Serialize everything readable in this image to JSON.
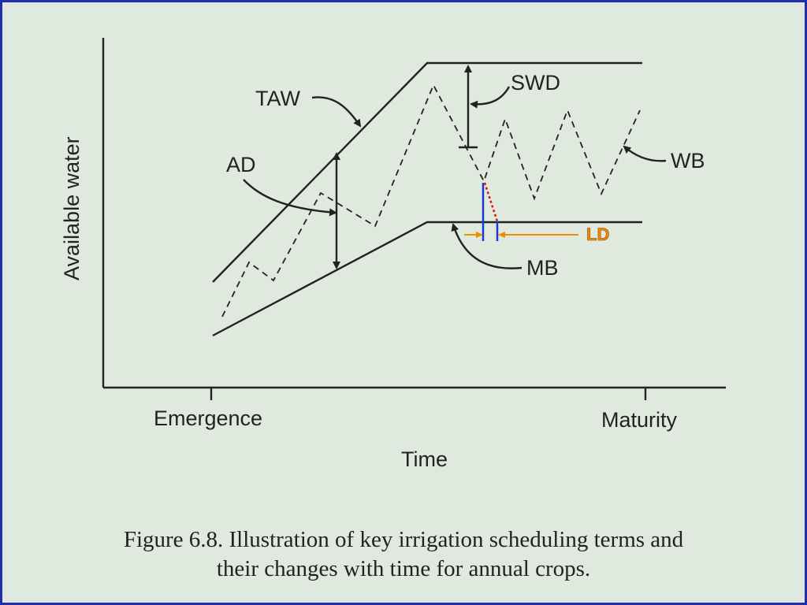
{
  "figure": {
    "y_axis_label": "Available water",
    "x_axis_label": "Time",
    "x_ticks": [
      "Emergence",
      "Maturity"
    ],
    "labels": {
      "taw": "TAW",
      "swd": "SWD",
      "ad": "AD",
      "wb": "WB",
      "mb": "MB",
      "ld": "LD"
    },
    "caption_line1": "Figure 6.8.  Illustration of key irrigation scheduling terms and",
    "caption_line2": "their changes with time for annual crops."
  },
  "colors": {
    "background": "#dfe9de",
    "border": "#1f2fb0",
    "ld_accent": "#f08c00",
    "marker_blue": "#1a3ad8",
    "marker_red": "#e01010"
  }
}
